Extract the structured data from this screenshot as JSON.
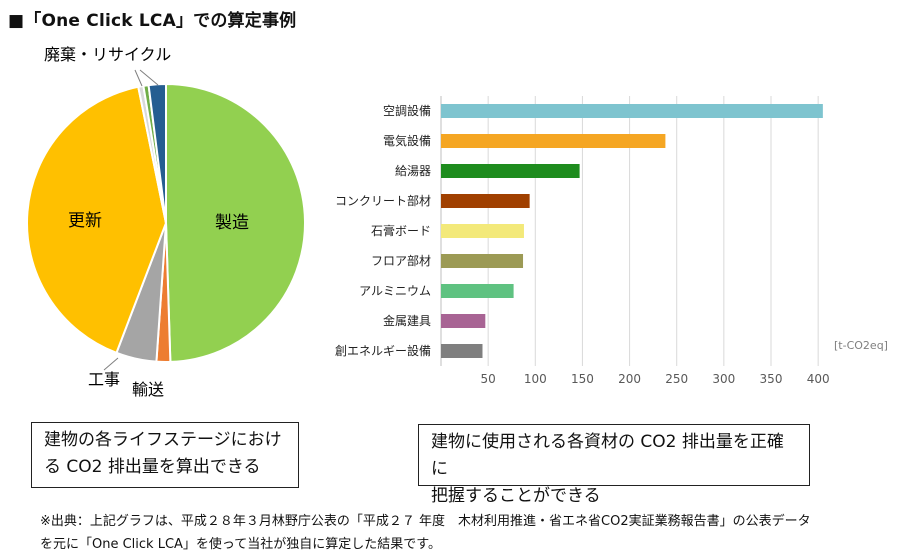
{
  "title": "■「One Click LCA」での算定事例",
  "pie_chart": {
    "type": "pie",
    "segments": [
      {
        "label": "製造",
        "value": 49.5,
        "color": "#92D050"
      },
      {
        "label": "輸送",
        "value": 1.6,
        "color": "#ED7D31"
      },
      {
        "label": "工事",
        "value": 4.7,
        "color": "#A5A5A5"
      },
      {
        "label": "更新",
        "value": 41.0,
        "color": "#FFC000"
      },
      {
        "label": "廃棄・リサイクル",
        "value": 0.6,
        "color": "#D9D9D9"
      },
      {
        "label": "廃棄・リサイクル",
        "value": 0.6,
        "color": "#70AD47"
      },
      {
        "label": "廃棄・リサイクル",
        "value": 2.0,
        "color": "#255E91"
      }
    ],
    "labels": {
      "manufacturing": "製造",
      "renewal": "更新",
      "construction": "工事",
      "transport": "輸送",
      "disposal": "廃棄・リサイクル"
    }
  },
  "chart_data": {
    "type": "bar",
    "orientation": "horizontal",
    "categories": [
      "空調設備",
      "電気設備",
      "給湯器",
      "コンクリート部材",
      "石膏ボード",
      "フロア部材",
      "アルミニウム",
      "金属建具",
      "創エネルギー設備"
    ],
    "values": [
      405,
      238,
      147,
      94,
      88,
      87,
      77,
      47,
      44
    ],
    "colors": [
      "#7EC4CF",
      "#F5A623",
      "#1E8C1E",
      "#A04000",
      "#F3E97A",
      "#9C9A55",
      "#5FC281",
      "#A86494",
      "#7F7F7F"
    ],
    "xlim": [
      0,
      420
    ],
    "xticks": [
      50,
      100,
      150,
      200,
      250,
      300,
      350,
      400
    ],
    "unit_label": "[t-CO2eq]",
    "grid": true
  },
  "boxes": {
    "left_line1": "建物の各ライフステージにおけ",
    "left_line2": "る CO2 排出量を算出できる",
    "right_line1": "建物に使用される各資材の CO2 排出量を正確に",
    "right_line2": "把握することができる"
  },
  "footer": {
    "line1": "※出典：上記グラフは、平成２８年３月林野庁公表の「平成２７ 年度　木材利用推進・省エネ省CO2実証業務報告書」の公表データ",
    "line2": "を元に「One Click LCA」を使って当社が独自に算定した結果です。"
  }
}
